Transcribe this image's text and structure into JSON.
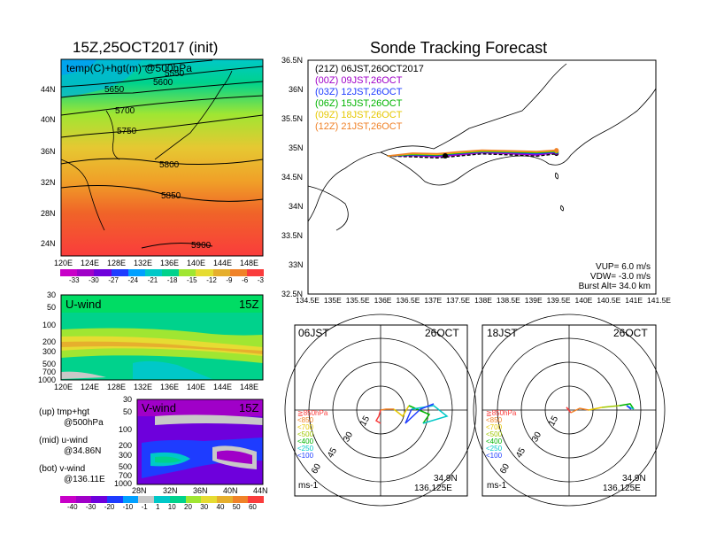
{
  "left_title": "15Z,25OCT2017 (init)",
  "right_title": "Sonde Tracking Forecast",
  "temp_map": {
    "label": "temp(C)+hgt(m) @500hPa",
    "lat_ticks": [
      "44N",
      "40N",
      "36N",
      "32N",
      "28N",
      "24N"
    ],
    "lon_ticks": [
      "120E",
      "124E",
      "128E",
      "132E",
      "136E",
      "140E",
      "144E",
      "148E"
    ],
    "contour_labels": [
      "5550",
      "5600",
      "5650",
      "5700",
      "5750",
      "5800",
      "5850",
      "5900"
    ],
    "colorbar_ticks": [
      "-33",
      "-30",
      "-27",
      "-24",
      "-21",
      "-18",
      "-15",
      "-12",
      "-9",
      "-6",
      "-3"
    ],
    "colorbar_colors": [
      "#a000c8",
      "#6e00dc",
      "#1e3cff",
      "#00a0ff",
      "#00c8c8",
      "#00d28c",
      "#a0e632",
      "#e6dc32",
      "#e6af2d",
      "#f08228",
      "#fa3c3c"
    ]
  },
  "uwind": {
    "label": "U-wind",
    "time": "15Z",
    "p_ticks": [
      "30",
      "50",
      "100",
      "200",
      "300",
      "500",
      "700",
      "1000"
    ],
    "lon_ticks": [
      "120E",
      "124E",
      "128E",
      "132E",
      "136E",
      "140E",
      "144E",
      "148E"
    ]
  },
  "vwind": {
    "label": "V-wind",
    "time": "15Z",
    "p_ticks": [
      "30",
      "50",
      "100",
      "200",
      "300",
      "500",
      "700",
      "1000"
    ],
    "lat_ticks": [
      "28N",
      "32N",
      "36N",
      "40N",
      "44N"
    ]
  },
  "legend_notes": {
    "up": "(up) tmp+hgt",
    "up2": "@500hPa",
    "mid": "(mid) u-wind",
    "mid2": "@34.86N",
    "bot": "(bot) v-wind",
    "bot2": "@136.11E"
  },
  "wind_colorbar": {
    "ticks": [
      "-40",
      "-30",
      "-20",
      "-10",
      "-1",
      "1",
      "10",
      "20",
      "30",
      "40",
      "50",
      "60"
    ],
    "colors": [
      "#a000c8",
      "#6e00dc",
      "#1e3cff",
      "#00a0ff",
      "#00c8c8",
      "#c8c8c8",
      "#00d28c",
      "#a0e632",
      "#e6dc32",
      "#e6af2d",
      "#f08228",
      "#fa3c3c"
    ]
  },
  "track_map": {
    "lat_ticks": [
      "36.5N",
      "36N",
      "35.5N",
      "35N",
      "34.5N",
      "34N",
      "33.5N",
      "33N",
      "32.5N"
    ],
    "lon_ticks": [
      "134.5E",
      "135E",
      "135.5E",
      "136E",
      "136.5E",
      "137E",
      "137.5E",
      "138E",
      "138.5E",
      "139E",
      "139.5E",
      "140E",
      "140.5E",
      "141E",
      "141.5E"
    ],
    "legend": [
      {
        "code": "(21Z)",
        "time": "06JST,26OCT2017",
        "color": "#000000"
      },
      {
        "code": "(00Z)",
        "time": "09JST,26OCT",
        "color": "#a000c8"
      },
      {
        "code": "(03Z)",
        "time": "12JST,26OCT",
        "color": "#1e3cff"
      },
      {
        "code": "(06Z)",
        "time": "15JST,26OCT",
        "color": "#00b400"
      },
      {
        "code": "(09Z)",
        "time": "18JST,26OCT",
        "color": "#e6c800"
      },
      {
        "code": "(12Z)",
        "time": "21JST,26OCT",
        "color": "#f08228"
      }
    ],
    "params": {
      "vup": "VUP=  6.0  m/s",
      "vdw": "VDW= -3.0  m/s",
      "burst": "Burst Alt= 34.0  km"
    }
  },
  "chart_data": [
    {
      "type": "line",
      "title": "Sonde Tracking Forecast",
      "xlim": [
        134.5,
        141.5
      ],
      "ylim": [
        32.5,
        36.5
      ],
      "series": [
        {
          "name": "(21Z) 06JST,26OCT2017",
          "x": [
            136.1,
            136.6,
            137.1,
            137.5,
            138.0,
            138.6,
            139.1,
            139.5
          ],
          "y": [
            34.86,
            34.85,
            34.83,
            34.86,
            34.9,
            34.88,
            34.86,
            34.9
          ]
        },
        {
          "name": "(00Z) 09JST,26OCT",
          "x": [
            136.1,
            136.6,
            137.1,
            137.5,
            138.0,
            138.6,
            139.1,
            139.5
          ],
          "y": [
            34.86,
            34.87,
            34.85,
            34.88,
            34.92,
            34.9,
            34.88,
            34.92
          ]
        },
        {
          "name": "(03Z) 12JST,26OCT",
          "x": [
            136.1,
            136.6,
            137.1,
            137.5,
            138.0,
            138.6,
            139.1,
            139.5
          ],
          "y": [
            34.86,
            34.88,
            34.87,
            34.9,
            34.93,
            34.92,
            34.9,
            34.93
          ]
        },
        {
          "name": "(06Z) 15JST,26OCT",
          "x": [
            136.1,
            136.6,
            137.1,
            137.5,
            138.0,
            138.6,
            139.1,
            139.5
          ],
          "y": [
            34.86,
            34.89,
            34.88,
            34.91,
            34.94,
            34.93,
            34.92,
            34.94
          ]
        },
        {
          "name": "(09Z) 18JST,26OCT",
          "x": [
            136.1,
            136.6,
            137.1,
            137.5,
            138.0,
            138.6,
            139.1,
            139.5
          ],
          "y": [
            34.86,
            34.9,
            34.89,
            34.92,
            34.95,
            34.94,
            34.93,
            34.95
          ]
        },
        {
          "name": "(12Z) 21JST,26OCT",
          "x": [
            136.1,
            136.6,
            137.1,
            137.5,
            138.0,
            138.6,
            139.1,
            139.5
          ],
          "y": [
            34.86,
            34.91,
            34.9,
            34.93,
            34.96,
            34.95,
            34.94,
            34.96
          ]
        }
      ]
    }
  ],
  "hodo_left": {
    "time": "06JST",
    "date": "26OCT",
    "lat": "34.9N",
    "lon": "136.125E",
    "unit": "ms-1",
    "ring_labels": [
      "15",
      "30",
      "45",
      "60"
    ]
  },
  "hodo_right": {
    "time": "18JST",
    "date": "26OCT",
    "lat": "34.9N",
    "lon": "136.125E",
    "unit": "ms-1",
    "ring_labels": [
      "15",
      "30",
      "45",
      "60"
    ]
  },
  "hodo_levels": [
    {
      "label": "≧850hPa",
      "color": "#fa3c3c"
    },
    {
      "label": "<850",
      "color": "#f08228"
    },
    {
      "label": "<700",
      "color": "#e6c800"
    },
    {
      "label": "<500",
      "color": "#a0c800"
    },
    {
      "label": "<400",
      "color": "#00b400"
    },
    {
      "label": "<250",
      "color": "#00c8c8"
    },
    {
      "label": "<100",
      "color": "#1e3cff"
    }
  ]
}
